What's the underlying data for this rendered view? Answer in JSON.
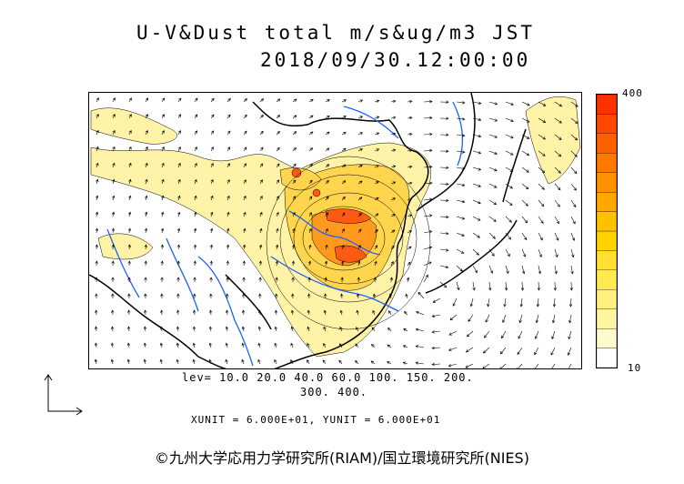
{
  "header": {
    "title": "U-V&Dust total m/s&ug/m3 JST",
    "datetime": "2018/09/30.12:00:00"
  },
  "colorbar": {
    "max_label": "400",
    "min_label": "10",
    "colors": [
      "#ffffff",
      "#fffacd",
      "#fff5a0",
      "#fff080",
      "#ffeb50",
      "#ffe030",
      "#ffd200",
      "#ffc000",
      "#ffa800",
      "#ff9000",
      "#ff7800",
      "#ff6000",
      "#ff4800",
      "#ff3000"
    ]
  },
  "levels": {
    "line1": "lev= 10.0 20.0 40.0 60.0 100. 150. 200.",
    "line2": "300. 400."
  },
  "units": "XUNIT = 6.000E+01, YUNIT = 6.000E+01",
  "credit": "©九州大学応用力学研究所(RIAM)/国立環境研究所(NIES)",
  "map_style": {
    "land_fill": "#fffacd",
    "dust_light": "#fff3a8",
    "dust_mid": "#ffd54d",
    "dust_high": "#ff9a1f",
    "dust_peak": "#ff5a14",
    "river": "#1f5fff",
    "coast": "#000000"
  }
}
